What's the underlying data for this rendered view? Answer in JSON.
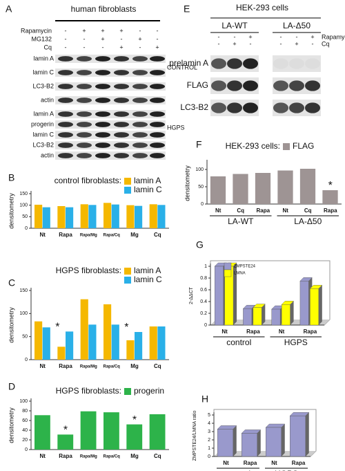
{
  "blots": [
    {
      "letter": "A",
      "title": "human fibroblasts",
      "treatments": [
        {
          "name": "Rapamycin",
          "signs": [
            "-",
            "+",
            "+",
            "+",
            "-",
            "-"
          ]
        },
        {
          "name": "MG132",
          "signs": [
            "-",
            "-",
            "+",
            "-",
            "+",
            "-"
          ]
        },
        {
          "name": "Cq",
          "signs": [
            "-",
            "-",
            "-",
            "+",
            "-",
            "+"
          ]
        }
      ],
      "sections": [
        {
          "name": "CONTROL",
          "bands": [
            "lamin A",
            "lamin C",
            "LC3-B2",
            "actin"
          ]
        },
        {
          "name": "HGPS",
          "bands": [
            "lamin A",
            "progerin",
            "lamin C",
            "LC3-B2",
            "actin"
          ]
        }
      ]
    },
    {
      "letter": "E",
      "title": "HEK-293 cells",
      "groups": [
        "LA-WT",
        "LA-Δ50"
      ],
      "treatments": [
        {
          "name": "Rapamycin",
          "signs": [
            "-",
            "-",
            "+",
            "-",
            "-",
            "+"
          ]
        },
        {
          "name": "Cq",
          "signs": [
            "-",
            "+",
            "-",
            "-",
            "+",
            "-"
          ]
        }
      ],
      "sections": [
        {
          "bands": [
            "prelamin A",
            "FLAG",
            "LC3-B2"
          ]
        }
      ]
    }
  ],
  "chart_data": [
    {
      "type": "bar",
      "letter": "B",
      "legend_title": "control fibroblasts:",
      "y_label": "densitometry",
      "categories": [
        "Nt",
        "Rapa",
        "Rapa/Mg",
        "Rapa/Cq",
        "Mg",
        "Cq"
      ],
      "series": [
        {
          "name": "lamin A",
          "color": "#f5b800",
          "values": [
            102,
            96,
            104,
            110,
            100,
            104
          ]
        },
        {
          "name": "lamin C",
          "color": "#2ab0e8",
          "values": [
            91,
            91,
            101,
            103,
            97,
            101
          ]
        }
      ],
      "ylim": [
        0,
        150
      ],
      "yticks": [
        0,
        50,
        100,
        150
      ]
    },
    {
      "type": "bar",
      "letter": "C",
      "legend_title": "HGPS fibroblasts:",
      "y_label": "densitometry",
      "categories": [
        "Nt",
        "Rapa",
        "Rapa/Mg",
        "Rapa/Cq",
        "Mg",
        "Cq"
      ],
      "series": [
        {
          "name": "lamin A",
          "color": "#f5b800",
          "values": [
            83,
            28,
            131,
            120,
            42,
            72
          ]
        },
        {
          "name": "lamin C",
          "color": "#2ab0e8",
          "values": [
            70,
            61,
            76,
            76,
            60,
            72
          ]
        }
      ],
      "ylim": [
        0,
        150
      ],
      "yticks": [
        0,
        50,
        100,
        150
      ],
      "annotations": [
        {
          "text": "*",
          "index": 1
        },
        {
          "text": "*",
          "index": 4
        }
      ]
    },
    {
      "type": "bar",
      "letter": "D",
      "legend_title": "HGPS fibroblasts:",
      "y_label": "densitometry",
      "categories": [
        "Nt",
        "Rapa",
        "Rapa/Mg",
        "Rapa/Cq",
        "Mg",
        "Cq"
      ],
      "series": [
        {
          "name": "progerin",
          "color": "#2db34a",
          "values": [
            71,
            31,
            79,
            77,
            52,
            73
          ]
        }
      ],
      "ylim": [
        0,
        100
      ],
      "yticks": [
        0,
        20,
        40,
        60,
        80,
        100
      ],
      "annotations": [
        {
          "text": "*",
          "index": 1
        },
        {
          "text": "*",
          "index": 4
        }
      ]
    },
    {
      "type": "bar",
      "letter": "F",
      "legend_title": "HEK-293 cells:",
      "y_label": "densitometry",
      "categories": [
        "Nt",
        "Cq",
        "Rapa",
        "Nt",
        "Cq",
        "Rapa"
      ],
      "groups": [
        "LA-WT",
        "LA-Δ50"
      ],
      "series": [
        {
          "name": "FLAG",
          "color": "#9e9494",
          "values": [
            80,
            87,
            90,
            97,
            102,
            40
          ]
        }
      ],
      "ylim": [
        0,
        120
      ],
      "yticks": [
        0,
        50,
        100
      ],
      "annotations": [
        {
          "text": "*",
          "index": 5
        }
      ]
    },
    {
      "type": "bar3d",
      "letter": "G",
      "y_label": "2-ΔΔCT",
      "categories": [
        "Nt",
        "Rapa",
        "Nt",
        "Rapa"
      ],
      "groups": [
        "control",
        "HGPS"
      ],
      "series": [
        {
          "name": "ZMPSTE24",
          "color": "#9999cc",
          "values": [
            1.0,
            0.28,
            0.27,
            0.75
          ]
        },
        {
          "name": "LMNA",
          "color": "#ffff00",
          "values": [
            1.0,
            0.3,
            0.35,
            0.62
          ]
        }
      ],
      "ylim": [
        0,
        1
      ],
      "yticks": [
        0,
        0.2,
        0.4,
        0.6,
        0.8,
        1
      ]
    },
    {
      "type": "bar3d",
      "letter": "H",
      "y_label": "ZMPSTE24/LMNA ratio",
      "categories": [
        "Nt",
        "Rapa",
        "Nt",
        "Rapa"
      ],
      "groups": [
        "control",
        "HGPS"
      ],
      "series": [
        {
          "color": "#9999cc",
          "values": [
            3.3,
            2.8,
            3.5,
            4.9
          ]
        }
      ],
      "ylim": [
        0,
        5
      ],
      "yticks": [
        0,
        1,
        2,
        3,
        4,
        5
      ]
    }
  ]
}
